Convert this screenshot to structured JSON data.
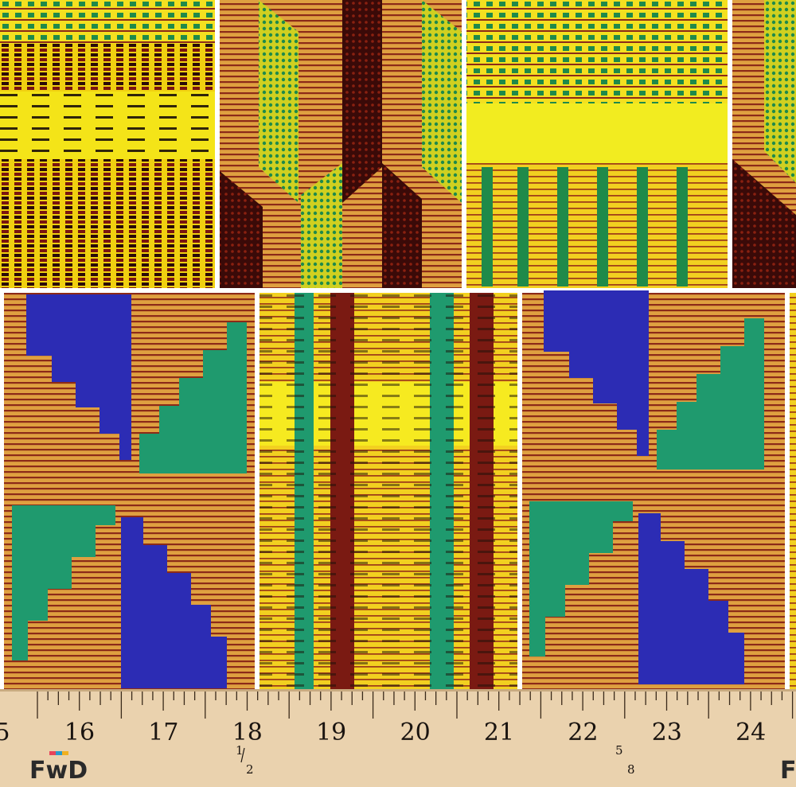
{
  "ruler": {
    "numbers": [
      "5",
      "16",
      "17",
      "18",
      "19",
      "20",
      "21",
      "22",
      "23",
      "24"
    ],
    "fractions": [
      {
        "top": "1",
        "bottom": "2"
      },
      {
        "top": "5",
        "bottom": "8"
      }
    ]
  },
  "logos": [
    "FwD",
    "F"
  ]
}
